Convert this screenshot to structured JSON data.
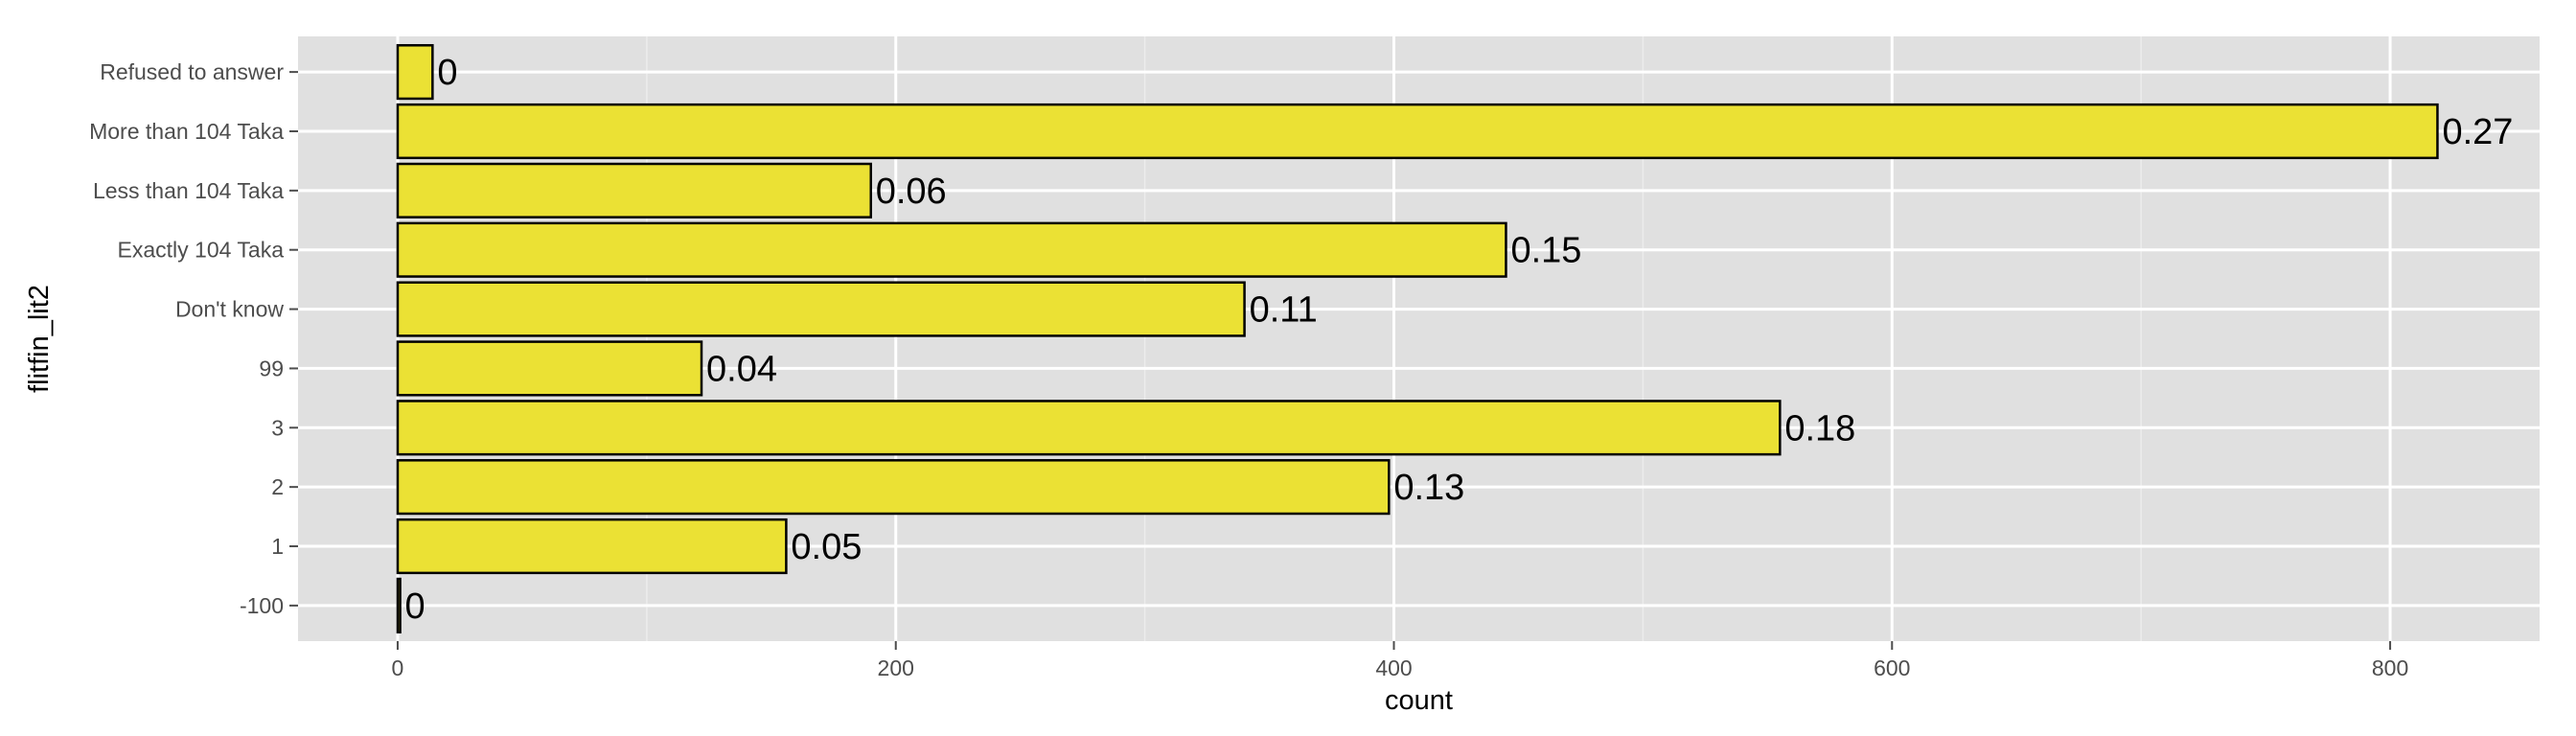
{
  "chart_data": {
    "type": "bar",
    "orientation": "horizontal",
    "title": "",
    "xlabel": "count",
    "ylabel": "flitfin_lit2",
    "categories": [
      "-100",
      "1",
      "2",
      "3",
      "99",
      "Don't know",
      "Exactly 104 Taka",
      "Less than 104 Taka",
      "More than 104 Taka",
      "Refused to answer"
    ],
    "values": [
      1,
      156,
      398,
      555,
      122,
      340,
      445,
      190,
      819,
      14
    ],
    "data_labels": [
      "0",
      "0.05",
      "0.13",
      "0.18",
      "0.04",
      "0.11",
      "0.15",
      "0.06",
      "0.27",
      "0"
    ],
    "xlim": [
      -40,
      860
    ],
    "x_ticks": [
      0,
      200,
      400,
      600,
      800
    ],
    "x_tick_labels": [
      "0",
      "200",
      "400",
      "600",
      "800"
    ],
    "grid": true,
    "legend": "none",
    "colors": {
      "bar_fill": "#ebe134",
      "bar_stroke": "#000000",
      "panel_background": "#e0e0e0",
      "grid_major": "#ffffff",
      "grid_minor": "#ececec",
      "tick_text": "#4d4d4d",
      "label_text": "#000000"
    }
  }
}
